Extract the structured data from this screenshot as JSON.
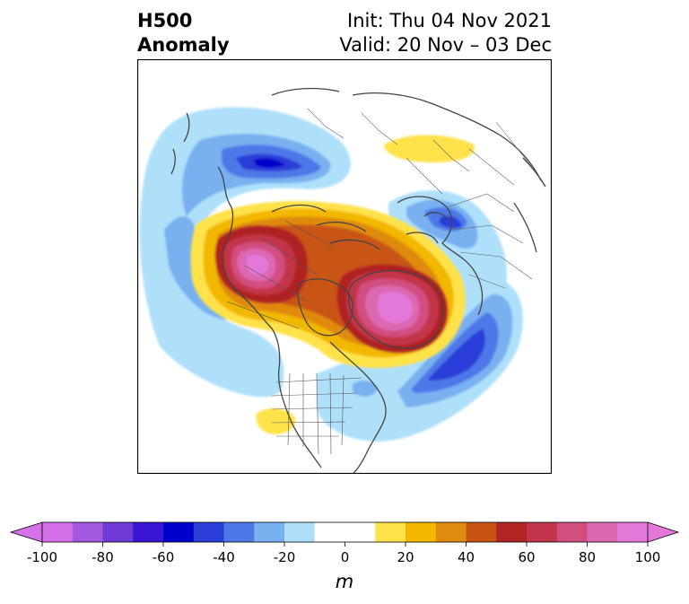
{
  "title": {
    "line1": "H500",
    "line2": "Anomaly"
  },
  "subtitle": {
    "init": "Init: Thu 04 Nov 2021",
    "valid": "Valid: 20 Nov – 03 Dec"
  },
  "colorbar": {
    "unit": "m",
    "min": -100,
    "max": 100,
    "levels": [
      -100,
      -90,
      -80,
      -70,
      -60,
      -50,
      -40,
      -30,
      -20,
      -10,
      10,
      20,
      30,
      40,
      50,
      60,
      70,
      80,
      90,
      100
    ],
    "tick_values": [
      -100,
      -80,
      -60,
      -40,
      -20,
      0,
      20,
      40,
      60,
      80,
      100
    ],
    "tick_labels": [
      "-100",
      "-80",
      "-60",
      "-40",
      "-20",
      "0",
      "20",
      "40",
      "60",
      "80",
      "100"
    ],
    "colors": [
      "#d670e8",
      "#a458e0",
      "#6e3ad8",
      "#3b15d4",
      "#0000cc",
      "#2a3ed8",
      "#4e78e8",
      "#78b0f0",
      "#aee0fa",
      "#ffffff",
      "#ffe24a",
      "#f2b800",
      "#e08a10",
      "#c85414",
      "#b02424",
      "#c2344a",
      "#d24e80",
      "#dc68b2",
      "#e478d8"
    ],
    "extend": "both"
  },
  "map": {
    "projection": "polar-stereographic",
    "region": "North America / Arctic / Atlantic",
    "anomaly_features": [
      {
        "sign": "negative",
        "region": "Northern Siberia",
        "peak": -60
      },
      {
        "sign": "negative",
        "region": "Scandinavia / NW Russia",
        "peak": -60
      },
      {
        "sign": "negative",
        "region": "Central North Atlantic",
        "peak": -60
      },
      {
        "sign": "negative",
        "region": "North Pacific / Aleutians",
        "peak": -30
      },
      {
        "sign": "positive",
        "region": "Beaufort Sea / Alaska",
        "peak": 90
      },
      {
        "sign": "positive",
        "region": "Greenland / Baffin Bay",
        "peak": 90
      },
      {
        "sign": "positive",
        "region": "Central Arctic",
        "peak": 20
      },
      {
        "sign": "positive",
        "region": "US Southwest",
        "peak": 20
      }
    ]
  }
}
